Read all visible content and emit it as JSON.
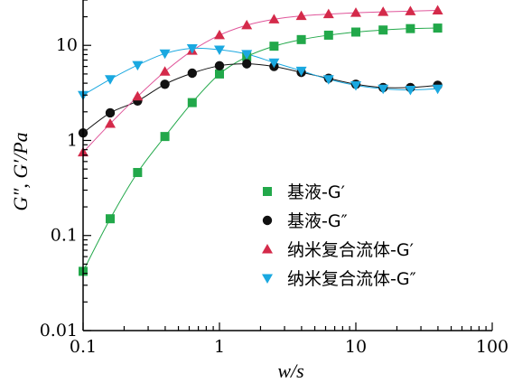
{
  "chart_data": {
    "type": "scatter",
    "title": "",
    "xlabel": "w/s",
    "ylabel": "G″, G′/Pa",
    "xscale": "log",
    "yscale": "log",
    "xlim": [
      0.1,
      100
    ],
    "ylim": [
      0.01,
      30
    ],
    "x_ticks": [
      {
        "value": 0.1,
        "label": "0.1"
      },
      {
        "value": 1,
        "label": "1"
      },
      {
        "value": 10,
        "label": "10"
      },
      {
        "value": 100,
        "label": "100"
      }
    ],
    "y_ticks": [
      {
        "value": 0.01,
        "label": "0.01"
      },
      {
        "value": 0.1,
        "label": "0.1"
      },
      {
        "value": 1,
        "label": "1"
      },
      {
        "value": 10,
        "label": "10"
      }
    ],
    "grid": false,
    "legend_position": "bottom-right",
    "series": [
      {
        "name": "基液-G′",
        "marker": "square",
        "color": "#22a84a",
        "x": [
          0.1,
          0.158,
          0.251,
          0.398,
          0.631,
          1.0,
          1.585,
          2.512,
          3.981,
          6.31,
          10,
          15.85,
          25.12,
          39.81
        ],
        "y": [
          0.042,
          0.15,
          0.46,
          1.1,
          2.5,
          5.0,
          7.6,
          9.8,
          11.5,
          12.8,
          13.8,
          14.5,
          15.0,
          15.2
        ]
      },
      {
        "name": "基液-G″",
        "marker": "circle",
        "color": "#111111",
        "x": [
          0.1,
          0.158,
          0.251,
          0.398,
          0.631,
          1.0,
          1.585,
          2.512,
          3.981,
          6.31,
          10,
          15.85,
          25.12,
          39.81
        ],
        "y": [
          1.2,
          1.95,
          2.6,
          3.9,
          5.1,
          6.1,
          6.4,
          6.0,
          5.2,
          4.5,
          3.9,
          3.6,
          3.6,
          3.8
        ]
      },
      {
        "name": "纳米复合流体-G′",
        "marker": "triangle-up",
        "color": "#d42a4a",
        "line_color": "#e0559a",
        "x": [
          0.1,
          0.158,
          0.251,
          0.398,
          0.631,
          1.0,
          1.585,
          2.512,
          3.981,
          6.31,
          10,
          15.85,
          25.12,
          39.81
        ],
        "y": [
          0.75,
          1.5,
          2.9,
          5.3,
          8.8,
          12.8,
          16.3,
          18.8,
          20.4,
          21.3,
          22.0,
          22.5,
          22.9,
          23.3
        ]
      },
      {
        "name": "纳米复合流体-G″",
        "marker": "triangle-down",
        "color": "#1aa8e0",
        "x": [
          0.1,
          0.158,
          0.251,
          0.398,
          0.631,
          1.0,
          1.585,
          2.512,
          3.981,
          6.31,
          10,
          15.85,
          25.12,
          39.81
        ],
        "y": [
          3.0,
          4.4,
          6.2,
          8.2,
          9.3,
          9.0,
          8.1,
          6.6,
          5.4,
          4.4,
          3.8,
          3.5,
          3.4,
          3.5
        ]
      }
    ]
  }
}
